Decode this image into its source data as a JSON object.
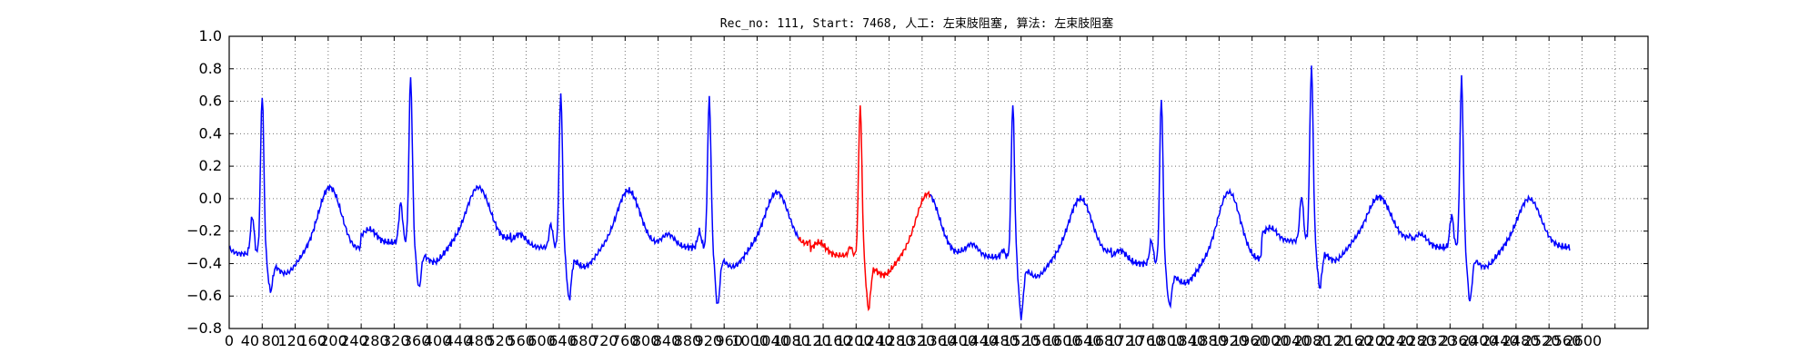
{
  "chart_data": {
    "type": "line",
    "title": "Rec_no: 111, Start: 7468, 人工: 左束肢阻塞, 算法: 左束肢阻塞",
    "xlabel": "",
    "ylabel": "",
    "xlim": [
      0,
      1720
    ],
    "ylim": [
      -0.8,
      1.0
    ],
    "grid": true,
    "x_tick_labels": [
      "0",
      "40",
      "80",
      "120",
      "160",
      "200",
      "240",
      "280",
      "320",
      "360",
      "400",
      "440",
      "480",
      "520",
      "560",
      "600",
      "640",
      "680",
      "720",
      "760",
      "800",
      "840",
      "880",
      "920",
      "960",
      "1000",
      "1040",
      "1080",
      "1120",
      "1160",
      "1200",
      "1240",
      "1280",
      "1320",
      "1360",
      "1400",
      "1440",
      "1480",
      "1520",
      "1560",
      "1600",
      "1640",
      "1680",
      "1720",
      "1760",
      "1800",
      "1840",
      "1880",
      "1920",
      "1960",
      "2000",
      "2040",
      "2080",
      "2120",
      "2160",
      "2200",
      "2240",
      "2280",
      "2320",
      "2360",
      "2400",
      "2440",
      "2480",
      "2520",
      "2560",
      "2600"
    ],
    "y_tick_labels": [
      "1.0",
      "0.8",
      "0.6",
      "0.4",
      "0.2",
      "0.0",
      "−0.2",
      "−0.4",
      "−0.6",
      "−0.8"
    ],
    "series_colors": [
      "#0000ff",
      "#ff0000",
      "#0000ff"
    ],
    "beats": [
      {
        "r_x": 40,
        "r_val": 0.65,
        "s_val": -0.53,
        "t_val": 0.12,
        "q_val": 0.21,
        "pre_base": -0.34,
        "color": "#0000ff"
      },
      {
        "r_x": 220,
        "r_val": 0.76,
        "s_val": -0.51,
        "t_val": 0.12,
        "q_val": 0.22,
        "pre_base": -0.27,
        "color": "#0000ff"
      },
      {
        "r_x": 402,
        "r_val": 0.66,
        "s_val": -0.58,
        "t_val": 0.1,
        "q_val": 0.13,
        "pre_base": -0.3,
        "color": "#0000ff"
      },
      {
        "r_x": 582,
        "r_val": 0.63,
        "s_val": -0.62,
        "t_val": 0.09,
        "q_val": 0.09,
        "pre_base": -0.3,
        "color": "#0000ff"
      },
      {
        "r_x": 765,
        "r_val": 0.58,
        "s_val": -0.64,
        "t_val": 0.08,
        "q_val": 0.05,
        "pre_base": -0.35,
        "color": "#ff0000"
      },
      {
        "r_x": 950,
        "r_val": 0.59,
        "s_val": -0.69,
        "t_val": 0.05,
        "q_val": 0.04,
        "pre_base": -0.36,
        "color": "#0000ff"
      },
      {
        "r_x": 1130,
        "r_val": 0.63,
        "s_val": -0.62,
        "t_val": 0.09,
        "q_val": 0.13,
        "pre_base": -0.4,
        "color": "#0000ff"
      },
      {
        "r_x": 1312,
        "r_val": 0.82,
        "s_val": -0.51,
        "t_val": 0.06,
        "q_val": 0.25,
        "pre_base": -0.26,
        "color": "#0000ff"
      },
      {
        "r_x": 1494,
        "r_val": 0.75,
        "s_val": -0.59,
        "t_val": 0.05,
        "q_val": 0.18,
        "pre_base": -0.3,
        "color": "#0000ff"
      }
    ],
    "highlight_range": [
      690,
      850
    ],
    "x_end": 1625
  }
}
